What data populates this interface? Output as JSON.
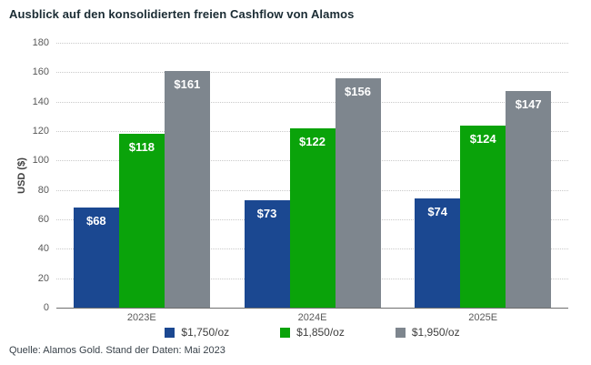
{
  "title": "Ausblick auf den konsolidierten freien Cashflow von Alamos",
  "source": "Quelle: Alamos Gold. Stand der Daten: Mai 2023",
  "colors": {
    "series_blue": "#1b4891",
    "series_green": "#0aa30a",
    "series_gray": "#7e868e",
    "gridline": "#c9c9c9",
    "axis_line": "#6f6f6f",
    "tick_text": "#595959",
    "bar_label_text": "#ffffff"
  },
  "chart_data": {
    "type": "bar",
    "title": "Ausblick auf den konsolidierten freien Cashflow von Alamos",
    "categories": [
      "2023E",
      "2024E",
      "2025E"
    ],
    "series": [
      {
        "name": "$1,750/oz",
        "color": "#1b4891",
        "values": [
          68,
          73,
          74
        ],
        "labels": [
          "$68",
          "$73",
          "$74"
        ]
      },
      {
        "name": "$1,850/oz",
        "color": "#0aa30a",
        "values": [
          118,
          122,
          124
        ],
        "labels": [
          "$118",
          "$122",
          "$124"
        ]
      },
      {
        "name": "$1,950/oz",
        "color": "#7e868e",
        "values": [
          161,
          156,
          147
        ],
        "labels": [
          "$161",
          "$156",
          "$147"
        ]
      }
    ],
    "xlabel": "",
    "ylabel": "USD ($)",
    "ylim": [
      0,
      180
    ],
    "ytick_step": 20,
    "grid": "horizontal-dotted",
    "legend_position": "bottom-center"
  }
}
